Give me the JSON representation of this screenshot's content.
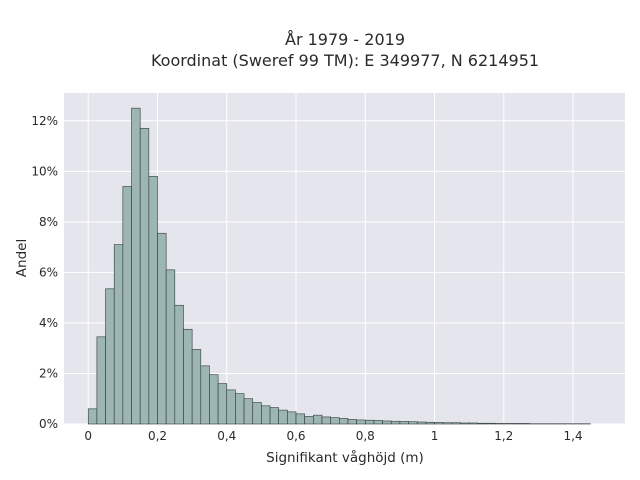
{
  "chart_data": {
    "type": "bar",
    "title_line1": "År 1979 - 2019",
    "title_line2": "Koordinat (Sweref 99 TM): E 349977, N 6214951",
    "xlabel": "Signifikant våghöjd (m)",
    "ylabel": "Andel",
    "bin_width": 0.025,
    "bin_start": 0,
    "values": [
      0.6,
      3.45,
      5.35,
      7.1,
      9.4,
      12.5,
      11.7,
      9.8,
      7.55,
      6.1,
      4.7,
      3.75,
      2.95,
      2.3,
      1.95,
      1.6,
      1.35,
      1.2,
      1.0,
      0.85,
      0.72,
      0.65,
      0.55,
      0.48,
      0.4,
      0.3,
      0.35,
      0.28,
      0.25,
      0.22,
      0.18,
      0.16,
      0.15,
      0.14,
      0.12,
      0.11,
      0.1,
      0.09,
      0.08,
      0.07,
      0.06,
      0.05,
      0.05,
      0.04,
      0.04,
      0.03,
      0.03,
      0.02,
      0.02,
      0.02,
      0.02,
      0.01,
      0.01,
      0.01,
      0.01,
      0.01,
      0.01,
      0.01
    ],
    "xlim": [
      -0.07,
      1.55
    ],
    "ylim": [
      0,
      13.1
    ],
    "xticks": [
      0,
      0.2,
      0.4,
      0.6,
      0.8,
      1.0,
      1.2,
      1.4
    ],
    "xtick_labels": [
      "0",
      "0,2",
      "0,4",
      "0,6",
      "0,8",
      "1",
      "1,2",
      "1,4"
    ],
    "yticks": [
      0,
      2,
      4,
      6,
      8,
      10,
      12
    ],
    "ytick_labels": [
      "0%",
      "2%",
      "4%",
      "6%",
      "8%",
      "10%",
      "12%"
    ],
    "grid": true,
    "colors": {
      "bar_fill": "#9db5b3",
      "bar_stroke": "#2f3a39",
      "plot_background": "#e5e5ee",
      "grid": "#ffffff"
    }
  }
}
